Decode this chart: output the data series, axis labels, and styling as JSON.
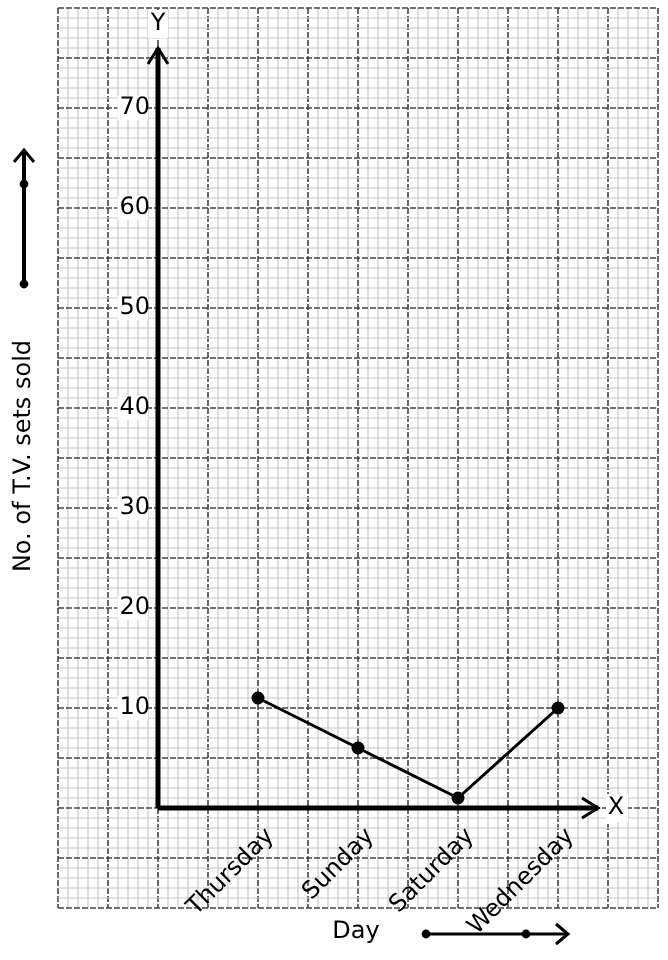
{
  "chart_data": {
    "type": "line",
    "categories": [
      "Thursday",
      "Sunday",
      "Saturday",
      "Wednesday"
    ],
    "series": [
      {
        "color": "#000000",
        "values": [
          11,
          6,
          1,
          10
        ]
      }
    ],
    "xlabel": "Day",
    "ylabel": "No. of T.V. sets sold",
    "annotations": [
      "Y",
      "X"
    ],
    "ylim": [
      0,
      76
    ],
    "yticks": [
      10,
      20,
      30,
      40,
      50,
      60,
      70
    ],
    "grid": true,
    "legend": false,
    "marker": "circle",
    "line_style": "solid"
  }
}
